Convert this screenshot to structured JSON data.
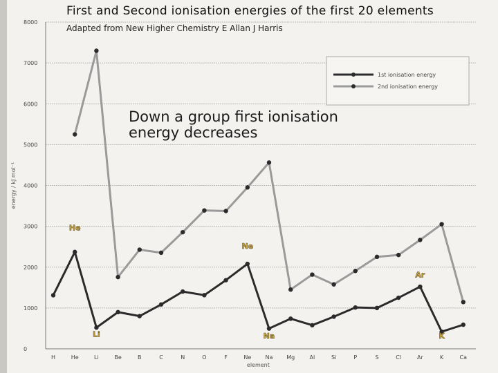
{
  "title": "First and Second ionisation energies of the first 20 elements",
  "subtitle": "Adapted from New Higher Chemistry E Allan J Harris",
  "annotation": "Down a group first ionisation energy decreases",
  "chart_data": {
    "type": "line",
    "categories": [
      "H",
      "He",
      "Li",
      "Be",
      "B",
      "C",
      "N",
      "O",
      "F",
      "Ne",
      "Na",
      "Mg",
      "Al",
      "Si",
      "P",
      "S",
      "Cl",
      "Ar",
      "K",
      "Ca"
    ],
    "xlabel": "element",
    "ylabel": "energy / kJ mol⁻¹",
    "ylim": [
      0,
      8000
    ],
    "yticks": [
      0,
      1000,
      2000,
      3000,
      4000,
      5000,
      6000,
      7000,
      8000
    ],
    "grid": "horizontal",
    "legend_position": "top-right",
    "series": [
      {
        "name": "1st ionisation energy",
        "color": "#2b2b2b",
        "values": [
          1312,
          2372,
          520,
          899,
          801,
          1086,
          1402,
          1314,
          1681,
          2081,
          496,
          738,
          578,
          787,
          1012,
          1000,
          1251,
          1521,
          419,
          590
        ]
      },
      {
        "name": "2nd ionisation energy",
        "color": "#9a9a9a",
        "values": [
          null,
          5251,
          7298,
          1757,
          2427,
          2353,
          2856,
          3388,
          3374,
          3952,
          4562,
          1451,
          1817,
          1577,
          1907,
          2252,
          2298,
          2666,
          3052,
          1145
        ]
      }
    ],
    "point_labels": [
      {
        "text": "He",
        "category": "He",
        "value": 2900
      },
      {
        "text": "Ne",
        "category": "Ne",
        "value": 2450
      },
      {
        "text": "Ar",
        "category": "Ar",
        "value": 1750
      },
      {
        "text": "Li",
        "category": "Li",
        "value": 300
      },
      {
        "text": "Na",
        "category": "Na",
        "value": 250
      },
      {
        "text": "K",
        "category": "K",
        "value": 250
      }
    ]
  }
}
